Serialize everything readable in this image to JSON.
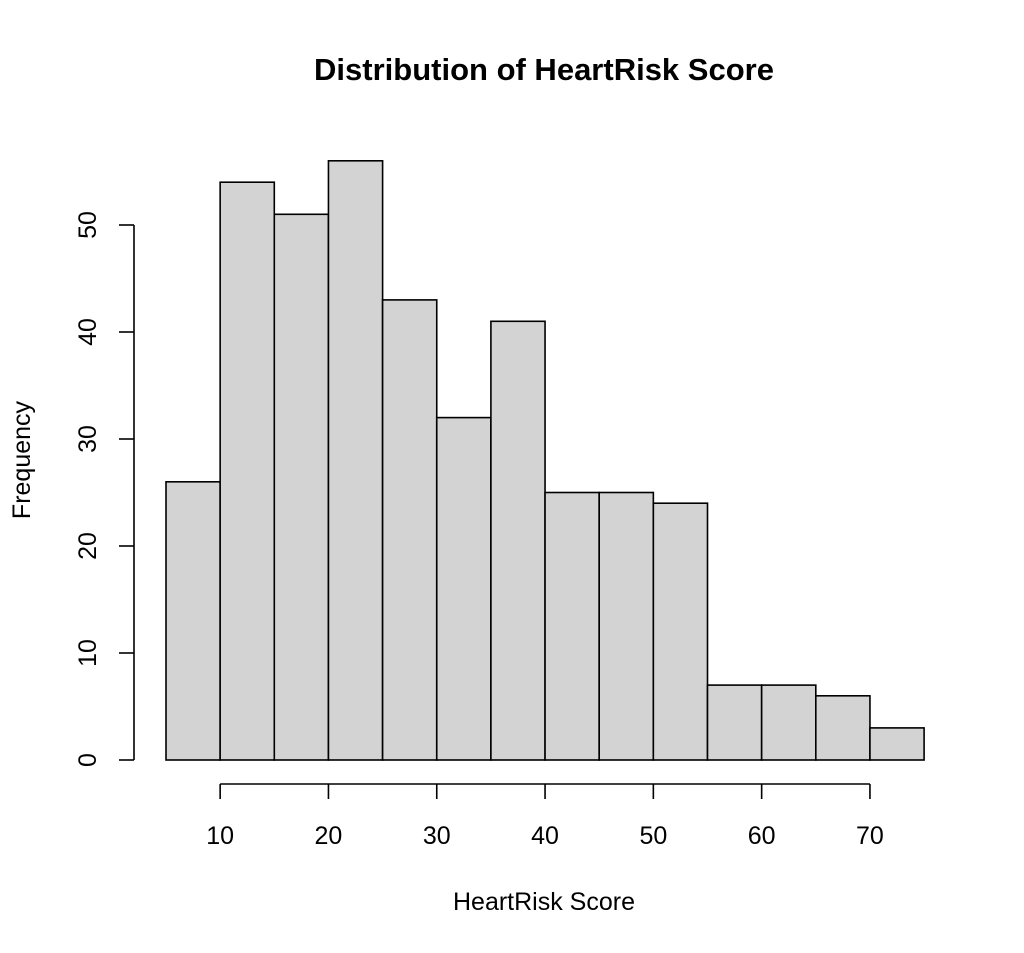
{
  "chart_data": {
    "type": "bar",
    "title": "Distribution of HeartRisk Score",
    "xlabel": "HeartRisk Score",
    "ylabel": "Frequency",
    "bin_edges": [
      5,
      10,
      15,
      20,
      25,
      30,
      35,
      40,
      45,
      50,
      55,
      60,
      65,
      70,
      75
    ],
    "values": [
      26,
      54,
      51,
      56,
      43,
      32,
      41,
      25,
      25,
      24,
      7,
      7,
      6,
      3
    ],
    "xlim": [
      5,
      75
    ],
    "ylim": [
      0,
      56
    ],
    "x_ticks": [
      10,
      20,
      30,
      40,
      50,
      60,
      70
    ],
    "y_ticks": [
      0,
      10,
      20,
      30,
      40,
      50
    ],
    "bar_color": "#d3d3d3",
    "grid": false,
    "legend": "none"
  }
}
